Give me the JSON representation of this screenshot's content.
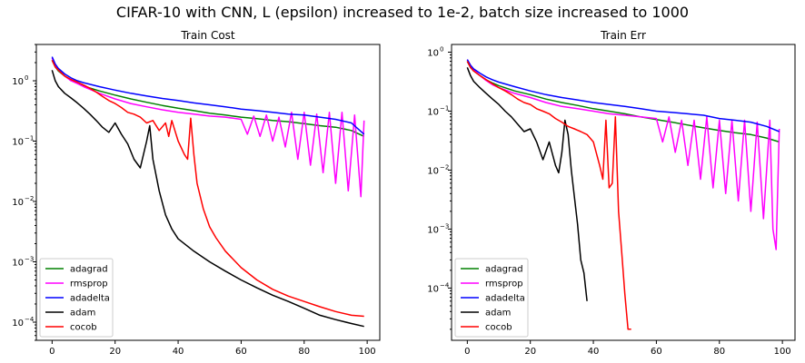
{
  "figure": {
    "suptitle": "CIFAR-10 with CNN, L (epsilon) increased to 1e-2, batch size increased to 1000"
  },
  "chart_data": [
    {
      "type": "line",
      "title": "Train Cost",
      "xlabel": "",
      "ylabel": "",
      "yscale": "log",
      "xlim": [
        -5,
        104
      ],
      "ylim": [
        5e-05,
        4
      ],
      "xticks": [
        0,
        20,
        40,
        60,
        80,
        100
      ],
      "yticks": [
        0.0001,
        0.001,
        0.01,
        0.1,
        1
      ],
      "ytick_labels": [
        "10",
        "10",
        "10",
        "10",
        "10"
      ],
      "ytick_exponents": [
        "−4",
        "−3",
        "−2",
        "−1",
        "0"
      ],
      "grid": false,
      "legend": "lower-left",
      "series": [
        {
          "name": "adagrad",
          "color": "#008000",
          "x": [
            0,
            1,
            2,
            4,
            6,
            8,
            10,
            15,
            20,
            25,
            30,
            35,
            40,
            45,
            50,
            55,
            60,
            65,
            70,
            75,
            80,
            85,
            90,
            95,
            99
          ],
          "y": [
            2.2,
            1.7,
            1.45,
            1.2,
            1.02,
            0.92,
            0.82,
            0.68,
            0.58,
            0.5,
            0.44,
            0.39,
            0.35,
            0.32,
            0.29,
            0.27,
            0.25,
            0.235,
            0.22,
            0.21,
            0.195,
            0.18,
            0.17,
            0.15,
            0.12
          ]
        },
        {
          "name": "rmsprop",
          "color": "#ff00ff",
          "x": [
            0,
            1,
            2,
            4,
            6,
            8,
            10,
            15,
            20,
            25,
            30,
            35,
            40,
            45,
            50,
            55,
            60,
            62,
            64,
            66,
            68,
            70,
            72,
            74,
            76,
            78,
            80,
            82,
            84,
            86,
            88,
            90,
            92,
            94,
            96,
            98,
            99
          ],
          "y": [
            2.4,
            1.8,
            1.5,
            1.2,
            1.0,
            0.9,
            0.8,
            0.62,
            0.5,
            0.42,
            0.37,
            0.33,
            0.3,
            0.28,
            0.26,
            0.25,
            0.23,
            0.13,
            0.26,
            0.12,
            0.27,
            0.1,
            0.25,
            0.08,
            0.3,
            0.05,
            0.3,
            0.04,
            0.28,
            0.03,
            0.3,
            0.02,
            0.3,
            0.015,
            0.27,
            0.012,
            0.22
          ]
        },
        {
          "name": "adadelta",
          "color": "#0000ff",
          "x": [
            0,
            1,
            2,
            4,
            6,
            8,
            10,
            15,
            20,
            25,
            30,
            35,
            40,
            45,
            50,
            55,
            60,
            65,
            70,
            75,
            80,
            85,
            90,
            95,
            99
          ],
          "y": [
            2.5,
            1.9,
            1.6,
            1.3,
            1.12,
            1.0,
            0.93,
            0.8,
            0.7,
            0.62,
            0.56,
            0.51,
            0.47,
            0.43,
            0.4,
            0.37,
            0.34,
            0.32,
            0.3,
            0.28,
            0.27,
            0.25,
            0.23,
            0.2,
            0.13
          ]
        },
        {
          "name": "adam",
          "color": "#000000",
          "x": [
            0,
            1,
            2,
            4,
            6,
            8,
            10,
            12,
            14,
            16,
            18,
            20,
            22,
            24,
            26,
            28,
            30,
            31,
            32,
            34,
            36,
            38,
            40,
            45,
            50,
            55,
            60,
            65,
            70,
            75,
            80,
            85,
            90,
            95,
            99
          ],
          "y": [
            1.5,
            1.0,
            0.8,
            0.62,
            0.52,
            0.43,
            0.35,
            0.28,
            0.22,
            0.17,
            0.14,
            0.2,
            0.13,
            0.09,
            0.05,
            0.036,
            0.1,
            0.18,
            0.05,
            0.015,
            0.006,
            0.0035,
            0.0024,
            0.0015,
            0.001,
            0.0007,
            0.0005,
            0.00037,
            0.00028,
            0.00022,
            0.00017,
            0.00013,
            0.00011,
            9.5e-05,
            8.5e-05
          ]
        },
        {
          "name": "cocob",
          "color": "#ff0000",
          "x": [
            0,
            1,
            2,
            4,
            6,
            8,
            10,
            12,
            14,
            16,
            18,
            20,
            22,
            24,
            26,
            28,
            30,
            32,
            34,
            36,
            37,
            38,
            40,
            42,
            43,
            44,
            45,
            46,
            48,
            50,
            52,
            55,
            60,
            65,
            70,
            75,
            80,
            85,
            90,
            95,
            99
          ],
          "y": [
            2.2,
            1.7,
            1.5,
            1.2,
            1.05,
            0.95,
            0.85,
            0.75,
            0.65,
            0.55,
            0.47,
            0.42,
            0.36,
            0.3,
            0.28,
            0.25,
            0.2,
            0.22,
            0.15,
            0.2,
            0.12,
            0.22,
            0.1,
            0.06,
            0.05,
            0.24,
            0.06,
            0.02,
            0.0075,
            0.0038,
            0.0025,
            0.0015,
            0.0008,
            0.0005,
            0.00035,
            0.00027,
            0.00022,
            0.00018,
            0.00015,
            0.00013,
            0.000125
          ]
        }
      ]
    },
    {
      "type": "line",
      "title": "Train Err",
      "xlabel": "",
      "ylabel": "",
      "yscale": "log",
      "xlim": [
        -5,
        104
      ],
      "ylim": [
        1.3e-05,
        1.35
      ],
      "xticks": [
        0,
        20,
        40,
        60,
        80,
        100
      ],
      "yticks": [
        0.0001,
        0.001,
        0.01,
        0.1,
        1
      ],
      "ytick_labels": [
        "10",
        "10",
        "10",
        "10",
        "10"
      ],
      "ytick_exponents": [
        "−4",
        "−3",
        "−2",
        "−1",
        "0"
      ],
      "grid": false,
      "legend": "lower-left",
      "series": [
        {
          "name": "adagrad",
          "color": "#008000",
          "x": [
            0,
            1,
            2,
            4,
            6,
            8,
            10,
            15,
            20,
            25,
            30,
            35,
            40,
            45,
            50,
            55,
            60,
            65,
            70,
            75,
            80,
            85,
            90,
            95,
            99
          ],
          "y": [
            0.7,
            0.55,
            0.48,
            0.4,
            0.34,
            0.3,
            0.27,
            0.22,
            0.19,
            0.16,
            0.14,
            0.125,
            0.11,
            0.1,
            0.09,
            0.08,
            0.072,
            0.065,
            0.058,
            0.052,
            0.047,
            0.043,
            0.04,
            0.035,
            0.03
          ]
        },
        {
          "name": "rmsprop",
          "color": "#ff00ff",
          "x": [
            0,
            1,
            2,
            4,
            6,
            8,
            10,
            15,
            20,
            25,
            30,
            35,
            40,
            45,
            50,
            55,
            60,
            62,
            64,
            66,
            68,
            70,
            72,
            74,
            76,
            78,
            80,
            82,
            84,
            86,
            88,
            90,
            92,
            94,
            96,
            97,
            98,
            99
          ],
          "y": [
            0.75,
            0.6,
            0.5,
            0.4,
            0.33,
            0.28,
            0.25,
            0.2,
            0.17,
            0.14,
            0.12,
            0.11,
            0.1,
            0.09,
            0.085,
            0.08,
            0.075,
            0.03,
            0.08,
            0.02,
            0.07,
            0.012,
            0.07,
            0.007,
            0.08,
            0.005,
            0.07,
            0.004,
            0.07,
            0.003,
            0.07,
            0.002,
            0.065,
            0.0015,
            0.07,
            0.001,
            0.00045,
            0.05
          ]
        },
        {
          "name": "adadelta",
          "color": "#0000ff",
          "x": [
            0,
            1,
            2,
            4,
            6,
            8,
            10,
            15,
            20,
            25,
            30,
            35,
            40,
            45,
            50,
            55,
            60,
            65,
            70,
            75,
            80,
            85,
            90,
            95,
            99
          ],
          "y": [
            0.75,
            0.6,
            0.52,
            0.44,
            0.38,
            0.34,
            0.31,
            0.26,
            0.22,
            0.19,
            0.17,
            0.155,
            0.14,
            0.13,
            0.12,
            0.11,
            0.1,
            0.095,
            0.09,
            0.085,
            0.075,
            0.07,
            0.065,
            0.055,
            0.045
          ]
        },
        {
          "name": "adam",
          "color": "#000000",
          "x": [
            0,
            1,
            2,
            4,
            6,
            8,
            10,
            12,
            14,
            16,
            18,
            20,
            22,
            24,
            26,
            28,
            29,
            30,
            31,
            32,
            33,
            34,
            35,
            36,
            37,
            38
          ],
          "y": [
            0.55,
            0.4,
            0.32,
            0.25,
            0.2,
            0.16,
            0.13,
            0.1,
            0.08,
            0.06,
            0.045,
            0.05,
            0.03,
            0.015,
            0.03,
            0.012,
            0.009,
            0.02,
            0.07,
            0.04,
            0.01,
            0.0035,
            0.0012,
            0.0003,
            0.00018,
            6e-05
          ]
        },
        {
          "name": "cocob",
          "color": "#ff0000",
          "x": [
            0,
            1,
            2,
            4,
            6,
            8,
            10,
            12,
            14,
            16,
            18,
            20,
            22,
            24,
            26,
            28,
            30,
            32,
            34,
            36,
            38,
            40,
            42,
            43,
            44,
            45,
            46,
            47,
            48,
            49,
            50,
            51,
            52
          ],
          "y": [
            0.7,
            0.55,
            0.48,
            0.4,
            0.34,
            0.29,
            0.25,
            0.22,
            0.19,
            0.16,
            0.14,
            0.13,
            0.11,
            0.1,
            0.09,
            0.075,
            0.065,
            0.055,
            0.05,
            0.045,
            0.04,
            0.03,
            0.012,
            0.007,
            0.07,
            0.005,
            0.006,
            0.08,
            0.002,
            0.0004,
            8e-05,
            2e-05,
            2e-05
          ]
        }
      ]
    }
  ]
}
